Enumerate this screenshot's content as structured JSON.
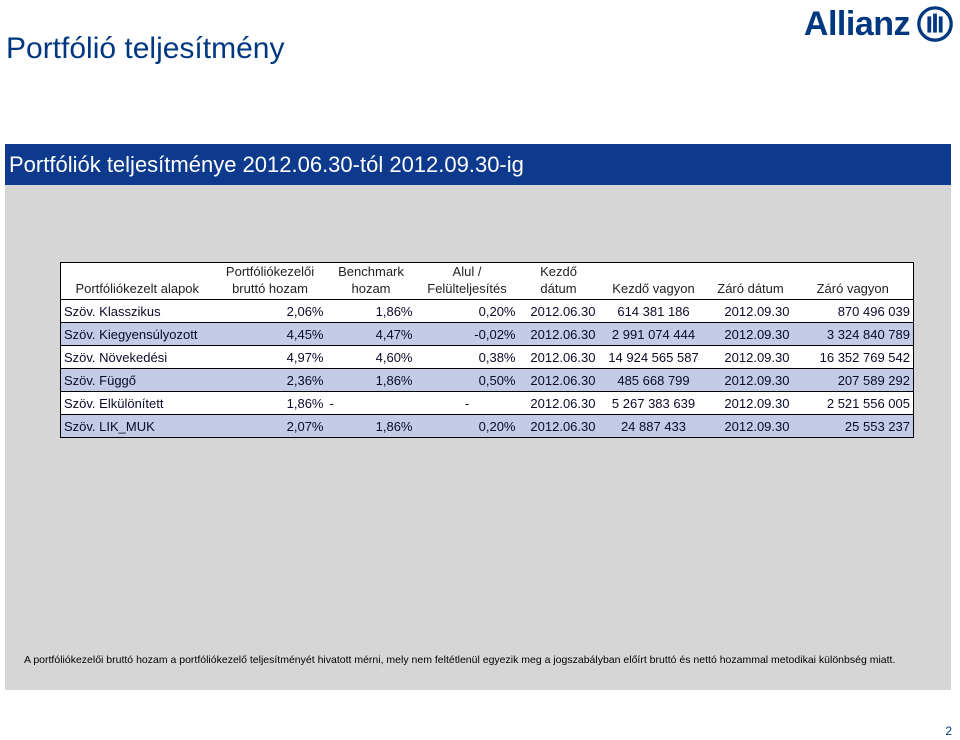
{
  "slide": {
    "title": "Portfólió teljesítmény",
    "logo_text": "Allianz",
    "banner": "Portfóliók teljesítménye 2012.06.30-tól 2012.09.30-ig",
    "footnote": "A portfóliókezelői bruttó hozam a portfóliókezelő teljesítményét hivatott mérni, mely nem feltétlenül egyezik meg a jogszabályban előírt bruttó és nettó hozammal metodikai különbség miatt.",
    "page_number": "2"
  },
  "table": {
    "headers": [
      {
        "line1": "",
        "line2": "Portfóliókezelt alapok"
      },
      {
        "line1": "Portfóliókezelői",
        "line2": "bruttó hozam"
      },
      {
        "line1": "Benchmark",
        "line2": "hozam"
      },
      {
        "line1": "Alul /",
        "line2": "Felülteljesítés"
      },
      {
        "line1": "Kezdő",
        "line2": "dátum"
      },
      {
        "line1": "",
        "line2": "Kezdő vagyon"
      },
      {
        "line1": "",
        "line2": "Záró dátum"
      },
      {
        "line1": "",
        "line2": "Záró vagyon"
      }
    ],
    "rows": [
      {
        "name": "Szöv. Klasszikus",
        "gross": "2,06%",
        "benchmark": "1,86%",
        "diff": "0,20%",
        "start_date": "2012.06.30",
        "start_assets": "614 381 186",
        "end_date": "2012.09.30",
        "end_assets": "870 496 039"
      },
      {
        "name": "Szöv. Kiegyensúlyozott",
        "gross": "4,45%",
        "benchmark": "4,47%",
        "diff": "-0,02%",
        "start_date": "2012.06.30",
        "start_assets": "2 991 074 444",
        "end_date": "2012.09.30",
        "end_assets": "3 324 840 789"
      },
      {
        "name": "Szöv. Növekedési",
        "gross": "4,97%",
        "benchmark": "4,60%",
        "diff": "0,38%",
        "start_date": "2012.06.30",
        "start_assets": "14 924 565 587",
        "end_date": "2012.09.30",
        "end_assets": "16 352 769 542"
      },
      {
        "name": "Szöv. Függő",
        "gross": "2,36%",
        "benchmark": "1,86%",
        "diff": "0,50%",
        "start_date": "2012.06.30",
        "start_assets": "485 668 799",
        "end_date": "2012.09.30",
        "end_assets": "207 589 292"
      },
      {
        "name": "Szöv. Elkülönített",
        "gross": "1,86%",
        "benchmark": "-",
        "diff": "-",
        "start_date": "2012.06.30",
        "start_assets": "5 267 383 639",
        "end_date": "2012.09.30",
        "end_assets": "2 521 556 005"
      },
      {
        "name": "Szöv. LIK_MUK",
        "gross": "2,07%",
        "benchmark": "1,86%",
        "diff": "0,20%",
        "start_date": "2012.06.30",
        "start_assets": "24 887 433",
        "end_date": "2012.09.30",
        "end_assets": "25 553 237"
      }
    ]
  },
  "colors": {
    "brand_blue": "#003781",
    "banner_blue": "#0d3a8d",
    "row_stripe": "#c3cbe6",
    "panel_gray": "#d6d6d6"
  }
}
